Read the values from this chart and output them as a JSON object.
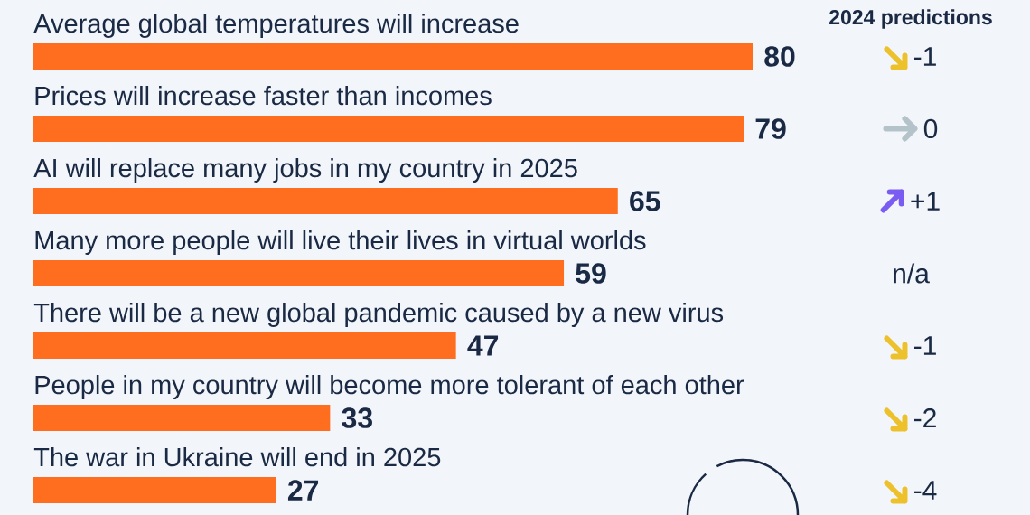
{
  "chart_data": {
    "type": "bar",
    "orientation": "horizontal",
    "categories": [
      "Average global temperatures will increase",
      "Prices will increase faster than incomes",
      "AI will replace many jobs in my country in 2025",
      "Many more people will live their lives in virtual worlds",
      "There will be a new global pandemic caused by a new virus",
      "People in my country will become more tolerant of each other",
      "The war in Ukraine will end in 2025"
    ],
    "values": [
      80,
      79,
      65,
      59,
      47,
      33,
      27
    ],
    "color": "#ff6d1f",
    "xlim": [
      0,
      80
    ],
    "data_labels": true,
    "tick_labels": "y",
    "annotations": [
      "2024 predictions",
      "-1",
      "0",
      "+1",
      "n/a",
      "-1",
      "-2",
      "-4"
    ]
  }
}
